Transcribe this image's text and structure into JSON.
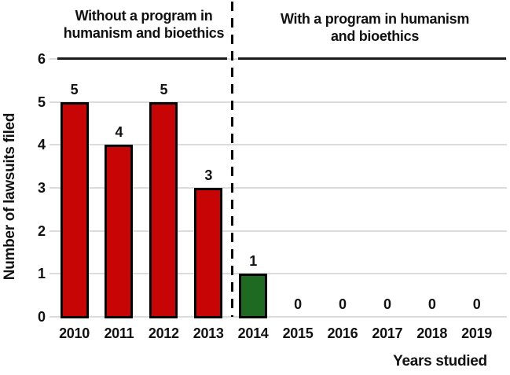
{
  "chart_data": {
    "type": "bar",
    "title_left": "Without a program in humanism and bioethics",
    "title_right": "With a program in humanism and bioethics",
    "xlabel": "Years studied",
    "ylabel": "Number of lawsuits filed",
    "categories": [
      "2010",
      "2011",
      "2012",
      "2013",
      "2014",
      "2015",
      "2016",
      "2017",
      "2018",
      "2019"
    ],
    "values": [
      5,
      4,
      5,
      3,
      1,
      0,
      0,
      0,
      0,
      0
    ],
    "value_labels": [
      "5",
      "4",
      "5",
      "3",
      "1",
      "0",
      "0",
      "0",
      "0",
      "0"
    ],
    "bar_colors": [
      "#c80505",
      "#c80505",
      "#c80505",
      "#c80505",
      "#1e6a23",
      null,
      null,
      null,
      null,
      null
    ],
    "ylim": [
      0,
      6
    ],
    "yticks": [
      0,
      1,
      2,
      3,
      4,
      5,
      6
    ],
    "grid": "horizontal-light",
    "legend": "none",
    "separator": {
      "type": "dashed-vertical-line",
      "between": [
        "2013",
        "2014"
      ]
    },
    "colors": {
      "without_program_bar": "#c80505",
      "with_program_bar": "#1e6a23",
      "bar_border": "#000000",
      "grid": "#dcdcdc",
      "text": "#111111",
      "separator": "#000000",
      "overline": "#1a1a1a"
    }
  }
}
